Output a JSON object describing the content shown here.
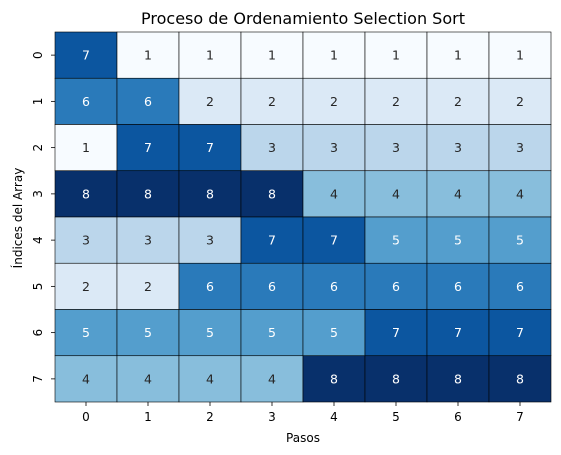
{
  "chart_data": {
    "type": "heatmap",
    "title": "Proceso de Ordenamiento Selection Sort",
    "xlabel": "Pasos",
    "ylabel": "Índices del Array",
    "x_ticks": [
      "0",
      "1",
      "2",
      "3",
      "4",
      "5",
      "6",
      "7"
    ],
    "y_ticks": [
      "0",
      "1",
      "2",
      "3",
      "4",
      "5",
      "6",
      "7"
    ],
    "values": [
      [
        7,
        1,
        1,
        1,
        1,
        1,
        1,
        1
      ],
      [
        6,
        6,
        2,
        2,
        2,
        2,
        2,
        2
      ],
      [
        1,
        7,
        7,
        3,
        3,
        3,
        3,
        3
      ],
      [
        8,
        8,
        8,
        8,
        4,
        4,
        4,
        4
      ],
      [
        3,
        3,
        3,
        7,
        7,
        5,
        5,
        5
      ],
      [
        2,
        2,
        6,
        6,
        6,
        6,
        6,
        6
      ],
      [
        5,
        5,
        5,
        5,
        5,
        7,
        7,
        7
      ],
      [
        4,
        4,
        4,
        4,
        8,
        8,
        8,
        8
      ]
    ],
    "vmin": 1,
    "vmax": 8,
    "colormap": "Blues",
    "colorbar": false,
    "annotations": true
  }
}
